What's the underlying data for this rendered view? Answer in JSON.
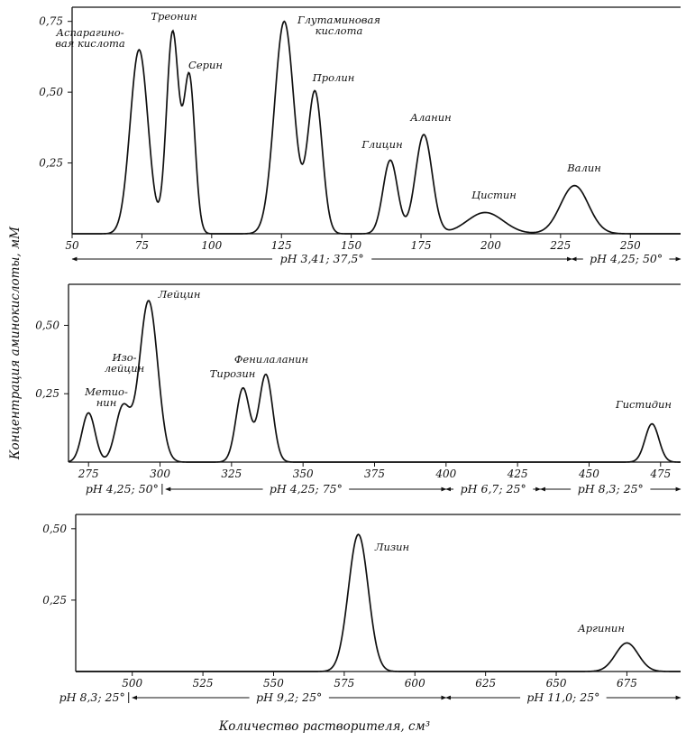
{
  "figure": {
    "ylabel": "Концентрация аминокислоты, мМ",
    "xlabel": "Количество растворителя, см³"
  },
  "chart_data": [
    {
      "type": "line",
      "xlim": [
        50,
        268
      ],
      "ylim": [
        0,
        0.8
      ],
      "x_ticks": [
        50,
        75,
        100,
        125,
        150,
        175,
        200,
        225,
        250
      ],
      "y_ticks": [
        0.25,
        0.5,
        0.75
      ],
      "x_tick_labels": [
        "50",
        "75",
        "100",
        "125",
        "150",
        "175",
        "200",
        "225",
        "250"
      ],
      "y_tick_labels": [
        "0,25",
        "0,50",
        "0,75"
      ],
      "peaks": [
        {
          "name": "Аспарагино-\nвая кислота",
          "x": 74,
          "y": 0.65,
          "width": 3.2
        },
        {
          "name": "Треонин",
          "x": 86,
          "y": 0.71,
          "width": 2.2
        },
        {
          "name": "Серин",
          "x": 92,
          "y": 0.55,
          "width": 2.0
        },
        {
          "name": "Глутаминовая\nкислота",
          "x": 126,
          "y": 0.75,
          "width": 3.5
        },
        {
          "name": "Пролин",
          "x": 137,
          "y": 0.5,
          "width": 2.6
        },
        {
          "name": "Глицин",
          "x": 164,
          "y": 0.26,
          "width": 2.6
        },
        {
          "name": "Аланин",
          "x": 176,
          "y": 0.35,
          "width": 3.0
        },
        {
          "name": "Цистин",
          "x": 198,
          "y": 0.075,
          "width": 6.5
        },
        {
          "name": "Валин",
          "x": 230,
          "y": 0.17,
          "width": 5.0
        }
      ],
      "ph_segments": [
        {
          "label": "pH 3,41; 37,5°",
          "x_start": 50,
          "x_end": 229
        },
        {
          "label": "pH 4,25; 50°",
          "x_start": 229,
          "x_end": 268
        }
      ]
    },
    {
      "type": "line",
      "xlim": [
        268,
        482
      ],
      "ylim": [
        0,
        0.65
      ],
      "x_ticks": [
        275,
        300,
        325,
        350,
        375,
        400,
        425,
        450,
        475
      ],
      "y_ticks": [
        0.25,
        0.5
      ],
      "x_tick_labels": [
        "275",
        "300",
        "325",
        "350",
        "375",
        "400",
        "425",
        "450",
        "475"
      ],
      "y_tick_labels": [
        "0,25",
        "0,50"
      ],
      "peaks": [
        {
          "name": "Метио-\nнин",
          "x": 275,
          "y": 0.18,
          "width": 2.3
        },
        {
          "name": "Изо-\nлейцин",
          "x": 287,
          "y": 0.2,
          "width": 2.6
        },
        {
          "name": "Лейцин",
          "x": 296,
          "y": 0.59,
          "width": 3.2
        },
        {
          "name": "Тирозин",
          "x": 329,
          "y": 0.27,
          "width": 2.4
        },
        {
          "name": "Фенилаланин",
          "x": 337,
          "y": 0.32,
          "width": 2.4
        },
        {
          "name": "Гистидин",
          "x": 472,
          "y": 0.14,
          "width": 2.4
        }
      ],
      "ph_segments": [
        {
          "label": "pH 4,25; 50°",
          "x_start": 268,
          "x_end": 302
        },
        {
          "label": "pH 4,25; 75°",
          "x_start": 302,
          "x_end": 400
        },
        {
          "label": "pH 6,7; 25°",
          "x_start": 400,
          "x_end": 433
        },
        {
          "label": "pH 8,3; 25°",
          "x_start": 433,
          "x_end": 482
        }
      ]
    },
    {
      "type": "line",
      "xlim": [
        480,
        694
      ],
      "ylim": [
        0,
        0.55
      ],
      "x_ticks": [
        500,
        525,
        550,
        575,
        600,
        625,
        650,
        675
      ],
      "y_ticks": [
        0.25,
        0.5
      ],
      "x_tick_labels": [
        "500",
        "525",
        "550",
        "575",
        "600",
        "625",
        "650",
        "675"
      ],
      "y_tick_labels": [
        "0,25",
        "0,50"
      ],
      "peaks": [
        {
          "name": "Лизин",
          "x": 580,
          "y": 0.48,
          "width": 3.5
        },
        {
          "name": "Аргинин",
          "x": 675,
          "y": 0.1,
          "width": 4.0
        }
      ],
      "ph_segments": [
        {
          "label": "pH 8,3; 25°",
          "x_start": 480,
          "x_end": 500
        },
        {
          "label": "pH 9,2; 25°",
          "x_start": 500,
          "x_end": 611
        },
        {
          "label": "pH 11,0; 25°",
          "x_start": 611,
          "x_end": 694
        }
      ]
    }
  ]
}
